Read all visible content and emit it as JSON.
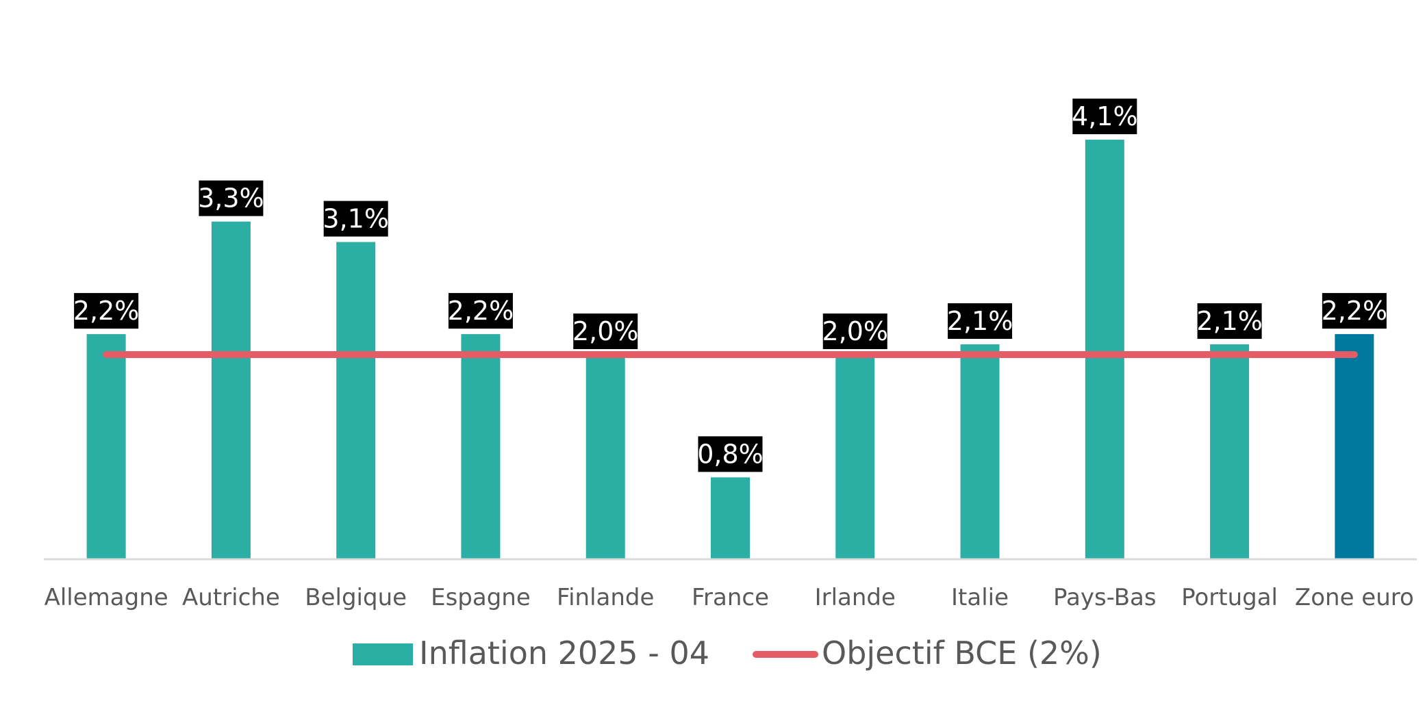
{
  "chart_data": {
    "type": "bar",
    "title": "",
    "xlabel": "",
    "ylabel": "",
    "ylim": [
      0,
      4.5
    ],
    "grid": false,
    "legend_position": "bottom",
    "categories": [
      "Allemagne",
      "Autriche",
      "Belgique",
      "Espagne",
      "Finlande",
      "France",
      "Irlande",
      "Italie",
      "Pays-Bas",
      "Portugal",
      "Zone euro"
    ],
    "series": [
      {
        "name": "Inflation 2025 - 04",
        "type": "bar",
        "values": [
          2.2,
          3.3,
          3.1,
          2.2,
          2.0,
          0.8,
          2.0,
          2.1,
          4.1,
          2.1,
          2.2
        ],
        "labels": [
          "2,2%",
          "3,3%",
          "3,1%",
          "2,2%",
          "2,0%",
          "0,8%",
          "2,0%",
          "2,1%",
          "4,1%",
          "2,1%",
          "2,2%"
        ],
        "color": "#2BAFA5",
        "highlight_color": "#00799E",
        "highlight_category": "Zone euro"
      },
      {
        "name": "Objectif BCE (2%)",
        "type": "line",
        "values": [
          2.0,
          2.0,
          2.0,
          2.0,
          2.0,
          2.0,
          2.0,
          2.0,
          2.0,
          2.0,
          2.0
        ],
        "color": "#E65C66"
      }
    ]
  }
}
